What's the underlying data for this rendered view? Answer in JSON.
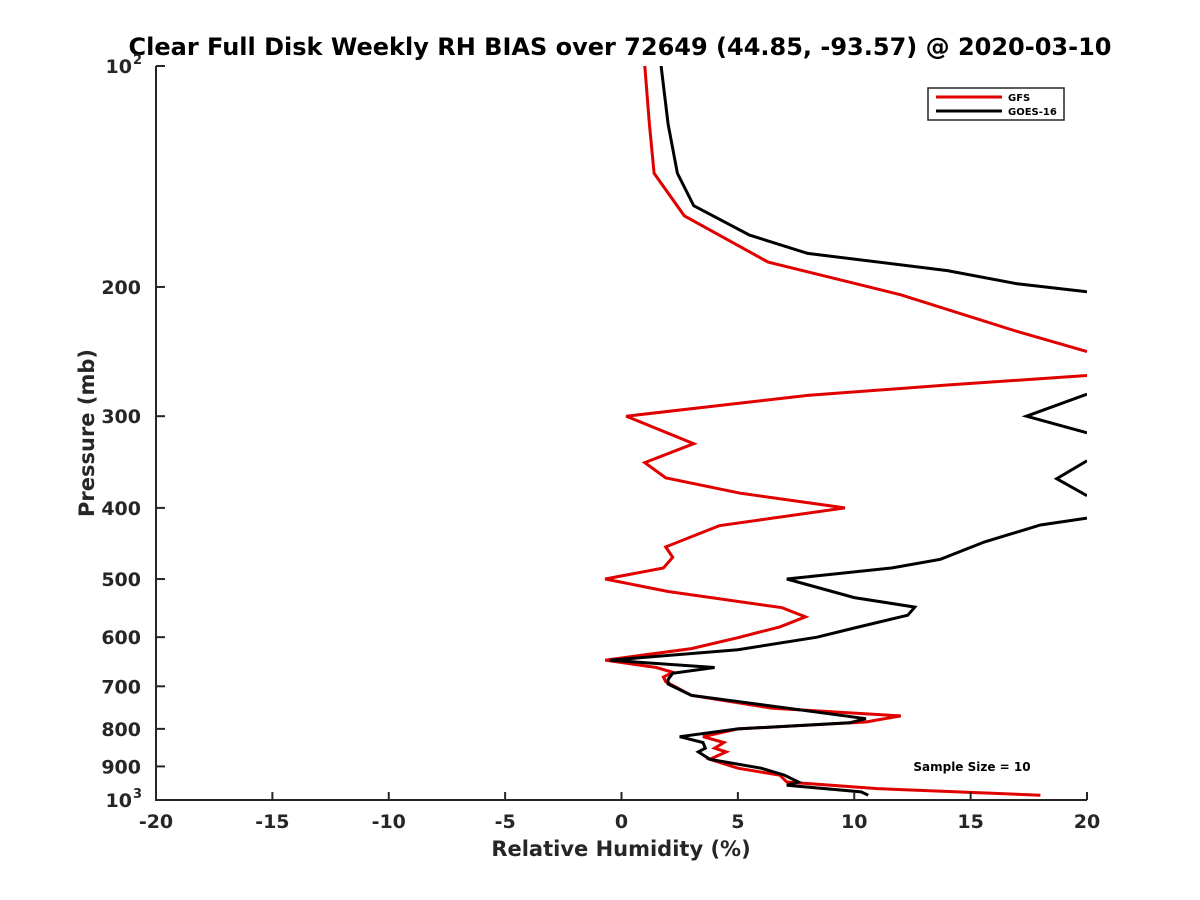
{
  "chart_data": {
    "type": "line",
    "title": "Clear Full Disk Weekly RH BIAS over 72649 (44.85, -93.57) @ 2020-03-10",
    "xlabel": "Relative Humidity (%)",
    "ylabel": "Pressure (mb)",
    "xlim": [
      -20,
      20
    ],
    "ylim": [
      1000,
      100
    ],
    "y_scale": "log",
    "y_reversed": true,
    "grid": false,
    "legend_position": "top-right",
    "x_ticks": [
      "-20",
      "-15",
      "-10",
      "-5",
      "0",
      "5",
      "10",
      "15",
      "20"
    ],
    "y_ticks": [
      {
        "value": 100,
        "base": "10",
        "exp": "2"
      },
      {
        "value": 200,
        "label": "200"
      },
      {
        "value": 300,
        "label": "300"
      },
      {
        "value": 400,
        "label": "400"
      },
      {
        "value": 500,
        "label": "500"
      },
      {
        "value": 600,
        "label": "600"
      },
      {
        "value": 700,
        "label": "700"
      },
      {
        "value": 800,
        "label": "800"
      },
      {
        "value": 900,
        "label": "900"
      },
      {
        "value": 1000,
        "base": "10",
        "exp": "3"
      }
    ],
    "annotation": "Sample Size = 10",
    "series": [
      {
        "name": "GFS",
        "color": "#e00000",
        "points": [
          [
            1.0,
            100
          ],
          [
            1.2,
            120
          ],
          [
            1.4,
            140
          ],
          [
            2.7,
            160
          ],
          [
            6.3,
            185
          ],
          [
            12.0,
            205
          ],
          [
            17.0,
            230
          ],
          [
            20.0,
            245
          ],
          [
            null,
            null
          ],
          [
            20.0,
            264
          ],
          [
            14.0,
            272
          ],
          [
            8.0,
            281
          ],
          [
            0.2,
            300
          ],
          [
            3.1,
            327
          ],
          [
            1.0,
            347
          ],
          [
            1.9,
            364
          ],
          [
            5.1,
            382
          ],
          [
            9.6,
            400
          ],
          [
            4.2,
            423
          ],
          [
            1.9,
            452
          ],
          [
            2.2,
            467
          ],
          [
            1.8,
            483
          ],
          [
            -0.7,
            500
          ],
          [
            2.0,
            520
          ],
          [
            6.9,
            547
          ],
          [
            7.9,
            563
          ],
          [
            6.8,
            581
          ],
          [
            5.0,
            601
          ],
          [
            3.0,
            622
          ],
          [
            -0.7,
            645
          ],
          [
            1.5,
            660
          ],
          [
            2.2,
            670
          ],
          [
            1.8,
            680
          ],
          [
            1.9,
            690
          ],
          [
            3.0,
            720
          ],
          [
            6.5,
            750
          ],
          [
            12.0,
            768
          ],
          [
            10.5,
            783
          ],
          [
            5.0,
            800
          ],
          [
            3.5,
            820
          ],
          [
            4.4,
            835
          ],
          [
            4.0,
            850
          ],
          [
            4.5,
            860
          ],
          [
            3.8,
            880
          ],
          [
            5.0,
            905
          ],
          [
            6.8,
            925
          ],
          [
            7.1,
            945
          ],
          [
            11.0,
            965
          ],
          [
            18.0,
            985
          ]
        ]
      },
      {
        "name": "GOES-16",
        "color": "#000000",
        "points": [
          [
            1.7,
            100
          ],
          [
            2.0,
            120
          ],
          [
            2.4,
            140
          ],
          [
            3.1,
            155
          ],
          [
            5.5,
            170
          ],
          [
            8.0,
            180
          ],
          [
            14.0,
            190
          ],
          [
            17.0,
            198
          ],
          [
            20.0,
            203
          ],
          [
            null,
            null
          ],
          [
            20.0,
            280
          ],
          [
            17.4,
            300
          ],
          [
            20.0,
            316
          ],
          [
            null,
            null
          ],
          [
            20.0,
            345
          ],
          [
            18.7,
            365
          ],
          [
            20.0,
            385
          ],
          [
            null,
            null
          ],
          [
            20.0,
            413
          ],
          [
            18.0,
            422
          ],
          [
            15.6,
            445
          ],
          [
            13.7,
            470
          ],
          [
            11.6,
            483
          ],
          [
            7.1,
            500
          ],
          [
            10.0,
            530
          ],
          [
            12.6,
            546
          ],
          [
            12.3,
            560
          ],
          [
            10.0,
            583
          ],
          [
            8.4,
            600
          ],
          [
            5.0,
            624
          ],
          [
            -0.5,
            645
          ],
          [
            4.0,
            660
          ],
          [
            2.2,
            672
          ],
          [
            2.0,
            685
          ],
          [
            2.0,
            695
          ],
          [
            3.0,
            720
          ],
          [
            10.5,
            775
          ],
          [
            9.8,
            785
          ],
          [
            5.0,
            800
          ],
          [
            2.5,
            820
          ],
          [
            3.5,
            835
          ],
          [
            3.6,
            850
          ],
          [
            3.3,
            860
          ],
          [
            3.8,
            880
          ],
          [
            6.0,
            905
          ],
          [
            7.0,
            925
          ],
          [
            7.6,
            945
          ],
          [
            7.1,
            955
          ],
          [
            10.3,
            975
          ],
          [
            10.6,
            985
          ]
        ]
      }
    ]
  }
}
